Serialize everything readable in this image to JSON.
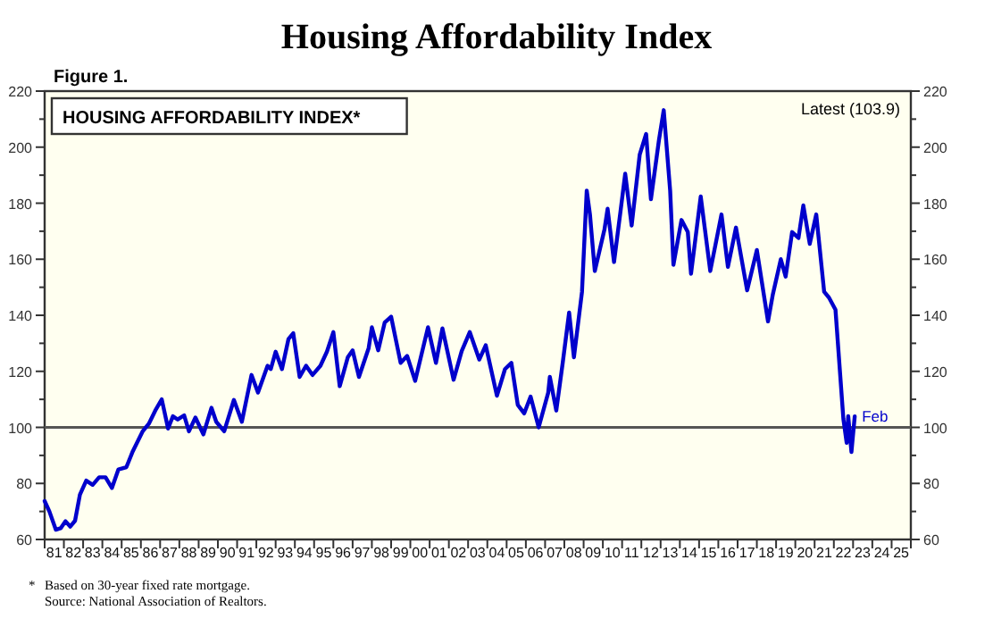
{
  "chart_data": {
    "type": "line",
    "title": "Housing Affordability Index",
    "subtitle": "HOUSING AFFORDABILITY INDEX*",
    "annotations": [
      "Figure 1.",
      "Latest (103.9)",
      {
        "text": "Feb",
        "x": "2023-02",
        "y": 103.9
      },
      "*",
      "Based on 30-year fixed rate mortgage.",
      "Source: National Association of Realtors."
    ],
    "x": [
      "1981-01",
      "1981-04",
      "1981-08",
      "1981-11",
      "1982-02",
      "1982-05",
      "1982-08",
      "1982-11",
      "1983-03",
      "1983-07",
      "1983-11",
      "1984-03",
      "1984-07",
      "1984-11",
      "1985-04",
      "1985-08",
      "1986-02",
      "1986-06",
      "1986-10",
      "1987-02",
      "1987-06",
      "1987-09",
      "1987-12",
      "1988-04",
      "1988-07",
      "1988-11",
      "1989-04",
      "1989-09",
      "1989-12",
      "1990-05",
      "1990-11",
      "1991-04",
      "1991-10",
      "1992-02",
      "1992-08",
      "1992-10",
      "1993-01",
      "1993-05",
      "1993-09",
      "1993-12",
      "1994-04",
      "1994-08",
      "1994-12",
      "1995-05",
      "1995-09",
      "1996-01",
      "1996-05",
      "1996-10",
      "1997-01",
      "1997-05",
      "1997-11",
      "1998-01",
      "1998-05",
      "1998-09",
      "1999-01",
      "1999-07",
      "1999-11",
      "2000-04",
      "2000-12",
      "2001-05",
      "2001-09",
      "2002-04",
      "2002-09",
      "2003-02",
      "2003-08",
      "2003-12",
      "2004-07",
      "2004-12",
      "2005-04",
      "2005-08",
      "2005-12",
      "2006-04",
      "2006-09",
      "2007-03",
      "2007-04",
      "2007-08",
      "2007-12",
      "2008-04",
      "2008-07",
      "2008-12",
      "2009-03",
      "2009-05",
      "2009-08",
      "2010-02",
      "2010-04",
      "2010-08",
      "2010-12",
      "2011-03",
      "2011-07",
      "2011-12",
      "2012-04",
      "2012-07",
      "2012-12",
      "2013-03",
      "2013-07",
      "2013-09",
      "2014-02",
      "2014-06",
      "2014-08",
      "2015-02",
      "2015-08",
      "2016-03",
      "2016-07",
      "2016-12",
      "2017-07",
      "2018-01",
      "2018-08",
      "2018-11",
      "2019-04",
      "2019-07",
      "2019-11",
      "2020-03",
      "2020-06",
      "2020-10",
      "2021-02",
      "2021-07",
      "2021-10",
      "2022-02",
      "2022-07",
      "2022-09",
      "2022-10",
      "2022-12",
      "2023-02"
    ],
    "series": [
      {
        "color": "#0000cc",
        "values": [
          73.7,
          70,
          63.5,
          64,
          66.5,
          64.6,
          66.7,
          76,
          81,
          79.5,
          82.2,
          82.2,
          78.4,
          85,
          85.8,
          91.5,
          98.5,
          101.3,
          106,
          110,
          99.6,
          104,
          102.8,
          104.3,
          98.6,
          103.5,
          97.5,
          107,
          102,
          98.6,
          109.8,
          102,
          118.7,
          112.4,
          122,
          120.8,
          127,
          120.8,
          131.5,
          133.6,
          118,
          122,
          118.7,
          122,
          127,
          134,
          114.7,
          125,
          127.5,
          118,
          128.3,
          135.7,
          127.5,
          137.4,
          139.5,
          123,
          125.5,
          116.6,
          135.7,
          123,
          135.3,
          117,
          127.2,
          134,
          124.2,
          129.3,
          111.3,
          120.8,
          123,
          108,
          105,
          111,
          100,
          112.4,
          118,
          106,
          123,
          141,
          125,
          148.4,
          184.5,
          176,
          155.8,
          170.7,
          178,
          159,
          177,
          190.5,
          172,
          197.3,
          204.7,
          181.4,
          202.6,
          213.2,
          184.5,
          158,
          174,
          169.7,
          154.8,
          182.4,
          155.8,
          176,
          157.3,
          171.3,
          148.9,
          163.3,
          137.8,
          147.5,
          160,
          153.8,
          169.7,
          167.6,
          179.2,
          165.5,
          176,
          148.4,
          146.3,
          142,
          103,
          94.5,
          104,
          91.2,
          103.9
        ]
      }
    ],
    "xlim": [
      "1981-01",
      "2026-01"
    ],
    "xticks": [
      {
        "value": "1981",
        "label": null
      },
      {
        "value": "1981-07",
        "label": "81"
      },
      {
        "value": "1982",
        "label": null
      },
      {
        "value": "1982-07",
        "label": "82"
      },
      {
        "value": "1983",
        "label": null
      },
      {
        "value": "1983-07",
        "label": "83"
      },
      {
        "value": "1984",
        "label": null
      },
      {
        "value": "1984-07",
        "label": "84"
      },
      {
        "value": "1985",
        "label": null
      },
      {
        "value": "1985-07",
        "label": "85"
      },
      {
        "value": "1986",
        "label": null
      },
      {
        "value": "1986-07",
        "label": "86"
      },
      {
        "value": "1987",
        "label": null
      },
      {
        "value": "1987-07",
        "label": "87"
      },
      {
        "value": "1988",
        "label": null
      },
      {
        "value": "1988-07",
        "label": "88"
      },
      {
        "value": "1989",
        "label": null
      },
      {
        "value": "1989-07",
        "label": "89"
      },
      {
        "value": "1990",
        "label": null
      },
      {
        "value": "1990-07",
        "label": "90"
      },
      {
        "value": "1991",
        "label": null
      },
      {
        "value": "1991-07",
        "label": "91"
      },
      {
        "value": "1992",
        "label": null
      },
      {
        "value": "1992-07",
        "label": "92"
      },
      {
        "value": "1993",
        "label": null
      },
      {
        "value": "1993-07",
        "label": "93"
      },
      {
        "value": "1994",
        "label": null
      },
      {
        "value": "1994-07",
        "label": "94"
      },
      {
        "value": "1995",
        "label": null
      },
      {
        "value": "1995-07",
        "label": "95"
      },
      {
        "value": "1996",
        "label": null
      },
      {
        "value": "1996-07",
        "label": "96"
      },
      {
        "value": "1997",
        "label": null
      },
      {
        "value": "1997-07",
        "label": "97"
      },
      {
        "value": "1998",
        "label": null
      },
      {
        "value": "1998-07",
        "label": "98"
      },
      {
        "value": "1999",
        "label": null
      },
      {
        "value": "1999-07",
        "label": "99"
      },
      {
        "value": "2000",
        "label": null
      },
      {
        "value": "2000-07",
        "label": "00"
      },
      {
        "value": "2001",
        "label": null
      },
      {
        "value": "2001-07",
        "label": "01"
      },
      {
        "value": "2002",
        "label": null
      },
      {
        "value": "2002-07",
        "label": "02"
      },
      {
        "value": "2003",
        "label": null
      },
      {
        "value": "2003-07",
        "label": "03"
      },
      {
        "value": "2004",
        "label": null
      },
      {
        "value": "2004-07",
        "label": "04"
      },
      {
        "value": "2005",
        "label": null
      },
      {
        "value": "2005-07",
        "label": "05"
      },
      {
        "value": "2006",
        "label": null
      },
      {
        "value": "2006-07",
        "label": "06"
      },
      {
        "value": "2007",
        "label": null
      },
      {
        "value": "2007-07",
        "label": "07"
      },
      {
        "value": "2008",
        "label": null
      },
      {
        "value": "2008-07",
        "label": "08"
      },
      {
        "value": "2009",
        "label": null
      },
      {
        "value": "2009-07",
        "label": "09"
      },
      {
        "value": "2010",
        "label": null
      },
      {
        "value": "2010-07",
        "label": "10"
      },
      {
        "value": "2011",
        "label": null
      },
      {
        "value": "2011-07",
        "label": "11"
      },
      {
        "value": "2012",
        "label": null
      },
      {
        "value": "2012-07",
        "label": "12"
      },
      {
        "value": "2013",
        "label": null
      },
      {
        "value": "2013-07",
        "label": "13"
      },
      {
        "value": "2014",
        "label": null
      },
      {
        "value": "2014-07",
        "label": "14"
      },
      {
        "value": "2015",
        "label": null
      },
      {
        "value": "2015-07",
        "label": "15"
      },
      {
        "value": "2016",
        "label": null
      },
      {
        "value": "2016-07",
        "label": "16"
      },
      {
        "value": "2017",
        "label": null
      },
      {
        "value": "2017-07",
        "label": "17"
      },
      {
        "value": "2018",
        "label": null
      },
      {
        "value": "2018-07",
        "label": "18"
      },
      {
        "value": "2019",
        "label": null
      },
      {
        "value": "2019-07",
        "label": "19"
      },
      {
        "value": "2020",
        "label": null
      },
      {
        "value": "2020-07",
        "label": "20"
      },
      {
        "value": "2021",
        "label": null
      },
      {
        "value": "2021-07",
        "label": "21"
      },
      {
        "value": "2022",
        "label": null
      },
      {
        "value": "2022-07",
        "label": "22"
      },
      {
        "value": "2023",
        "label": null
      },
      {
        "value": "2023-07",
        "label": "23"
      },
      {
        "value": "2024",
        "label": null
      },
      {
        "value": "2024-07",
        "label": "24"
      },
      {
        "value": "2025",
        "label": null
      },
      {
        "value": "2025-07",
        "label": "25"
      },
      {
        "value": "2026",
        "label": null
      }
    ],
    "ylim": [
      60,
      220
    ],
    "yticks": [
      60,
      {
        "value": 70,
        "label": null
      },
      80,
      {
        "value": 90,
        "label": null
      },
      100,
      {
        "value": 110,
        "label": null
      },
      120,
      {
        "value": 130,
        "label": null
      },
      140,
      {
        "value": 150,
        "label": null
      },
      160,
      {
        "value": 170,
        "label": null
      },
      180,
      {
        "value": 190,
        "label": null
      },
      200,
      {
        "value": 210,
        "label": null
      },
      220
    ],
    "y2lim": [
      60,
      220
    ],
    "y2ticks": [
      60,
      {
        "value": 70,
        "label": null
      },
      80,
      {
        "value": 90,
        "label": null
      },
      100,
      {
        "value": 110,
        "label": null
      },
      120,
      {
        "value": 130,
        "label": null
      },
      140,
      {
        "value": 150,
        "label": null
      },
      160,
      {
        "value": 170,
        "label": null
      },
      180,
      {
        "value": 190,
        "label": null
      },
      200,
      {
        "value": 210,
        "label": null
      },
      220
    ],
    "ref_lines": [
      {
        "axis": "y",
        "value": 100,
        "color": "#555555"
      }
    ],
    "grid": false,
    "line_style": "solid",
    "marker": "none"
  }
}
